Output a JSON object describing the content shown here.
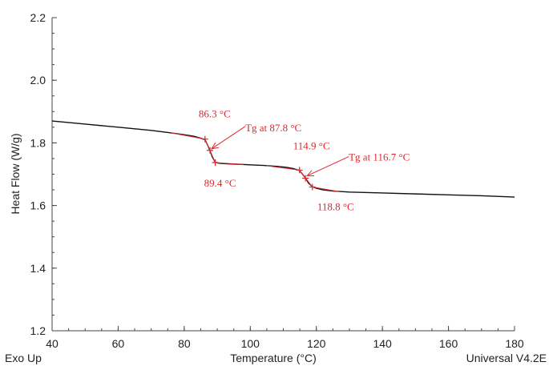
{
  "chart_data": {
    "type": "line",
    "xlabel": "Temperature (°C)",
    "ylabel": "Heat Flow (W/g)",
    "xlim": [
      40,
      180
    ],
    "ylim": [
      1.2,
      2.2
    ],
    "x_ticks": [
      "40",
      "60",
      "80",
      "100",
      "120",
      "140",
      "160",
      "180"
    ],
    "y_ticks": [
      "1.2",
      "1.4",
      "1.6",
      "1.8",
      "2.0",
      "2.2"
    ],
    "grid": false,
    "series": [
      {
        "color": "#111111",
        "points": [
          [
            40,
            1.87
          ],
          [
            50,
            1.86
          ],
          [
            60,
            1.85
          ],
          [
            70,
            1.84
          ],
          [
            76,
            1.832
          ],
          [
            80,
            1.826
          ],
          [
            83,
            1.821
          ],
          [
            85,
            1.815
          ],
          [
            86.3,
            1.81
          ],
          [
            87,
            1.795
          ],
          [
            87.8,
            1.775
          ],
          [
            88.5,
            1.755
          ],
          [
            89.4,
            1.738
          ],
          [
            90.5,
            1.735
          ],
          [
            93,
            1.733
          ],
          [
            96,
            1.732
          ],
          [
            100,
            1.73
          ],
          [
            104,
            1.728
          ],
          [
            108,
            1.725
          ],
          [
            111,
            1.722
          ],
          [
            113,
            1.718
          ],
          [
            114.9,
            1.712
          ],
          [
            115.8,
            1.7
          ],
          [
            116.7,
            1.688
          ],
          [
            117.6,
            1.672
          ],
          [
            118.8,
            1.66
          ],
          [
            120,
            1.655
          ],
          [
            122,
            1.65
          ],
          [
            125,
            1.646
          ],
          [
            130,
            1.643
          ],
          [
            140,
            1.64
          ],
          [
            150,
            1.637
          ],
          [
            160,
            1.634
          ],
          [
            170,
            1.631
          ],
          [
            180,
            1.627
          ]
        ]
      }
    ],
    "fit_segments": [
      {
        "from": [
          76,
          1.832
        ],
        "to": [
          86.3,
          1.812
        ]
      },
      {
        "from": [
          86.3,
          1.812
        ],
        "to": [
          89.4,
          1.737
        ]
      },
      {
        "from": [
          89.4,
          1.737
        ],
        "to": [
          98,
          1.731
        ]
      },
      {
        "from": [
          105,
          1.727
        ],
        "to": [
          114.9,
          1.713
        ]
      },
      {
        "from": [
          114.9,
          1.713
        ],
        "to": [
          118.8,
          1.659
        ]
      },
      {
        "from": [
          118.8,
          1.659
        ],
        "to": [
          127,
          1.644
        ]
      }
    ],
    "markers": [
      {
        "x": 86.3,
        "y": 1.812
      },
      {
        "x": 87.8,
        "y": 1.776
      },
      {
        "x": 89.4,
        "y": 1.737
      },
      {
        "x": 114.9,
        "y": 1.713
      },
      {
        "x": 116.7,
        "y": 1.687
      },
      {
        "x": 118.8,
        "y": 1.659
      }
    ],
    "annotations": [
      {
        "text": "86.3 °C",
        "x": 86.3,
        "y": 1.812
      },
      {
        "text": "Tg at 87.8 °C",
        "x": 87.8,
        "y": 1.776,
        "arrow": true
      },
      {
        "text": "89.4 °C",
        "x": 89.4,
        "y": 1.737
      },
      {
        "text": "114.9 °C",
        "x": 114.9,
        "y": 1.713
      },
      {
        "text": "Tg at 116.7 °C",
        "x": 116.7,
        "y": 1.687,
        "arrow": true
      },
      {
        "text": "118.8 °C",
        "x": 118.8,
        "y": 1.659
      }
    ],
    "annotation_color": "#e0262e"
  },
  "notes": {
    "bottom_left": "Exo Up",
    "bottom_right": "Universal V4.2E"
  }
}
